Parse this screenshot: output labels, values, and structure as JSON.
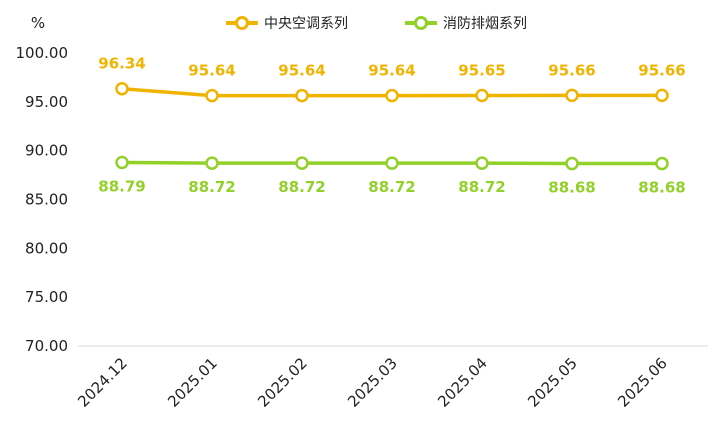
{
  "chart_data": {
    "type": "line",
    "y_unit": "%",
    "categories": [
      "2024.12",
      "2025.01",
      "2025.02",
      "2025.03",
      "2025.04",
      "2025.05",
      "2025.06"
    ],
    "series": [
      {
        "name": "中央空调系列",
        "color": "#F0B400",
        "values": [
          96.34,
          95.64,
          95.64,
          95.64,
          95.65,
          95.66,
          95.66
        ],
        "labels": [
          "96.34",
          "95.64",
          "95.64",
          "95.64",
          "95.65",
          "95.66",
          "95.66"
        ]
      },
      {
        "name": "消防排烟系列",
        "color": "#92D02A",
        "values": [
          88.79,
          88.72,
          88.72,
          88.72,
          88.72,
          88.68,
          88.68
        ],
        "labels": [
          "88.79",
          "88.72",
          "88.72",
          "88.72",
          "88.72",
          "88.68",
          "88.68"
        ]
      }
    ],
    "y_ticks": [
      "70.00",
      "75.00",
      "80.00",
      "85.00",
      "90.00",
      "95.00",
      "100.00"
    ],
    "ylim": [
      70,
      100
    ],
    "grid": false,
    "legend_position": "top-center"
  }
}
